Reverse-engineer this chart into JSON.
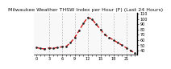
{
  "title": "Milwaukee Weather THSW Index per Hour (F) (Last 24 Hours)",
  "hours": [
    0,
    1,
    2,
    3,
    4,
    5,
    6,
    7,
    8,
    9,
    10,
    11,
    12,
    13,
    14,
    15,
    16,
    17,
    18,
    19,
    20,
    21,
    22,
    23
  ],
  "values": [
    46,
    44,
    43,
    45,
    44,
    46,
    47,
    48,
    55,
    65,
    78,
    92,
    103,
    100,
    90,
    80,
    70,
    65,
    60,
    55,
    50,
    45,
    40,
    35
  ],
  "line_color": "#cc0000",
  "marker_color": "#222222",
  "bg_color": "#ffffff",
  "plot_bg": "#f8f8f8",
  "grid_color": "#999999",
  "ylim": [
    32,
    112
  ],
  "ytick_vals": [
    40,
    50,
    60,
    70,
    80,
    90,
    100,
    110
  ],
  "ytick_labels": [
    "40",
    "50",
    "60",
    "70",
    "80",
    "90",
    "100",
    "110"
  ],
  "xtick_positions": [
    0,
    1,
    2,
    3,
    4,
    5,
    6,
    7,
    8,
    9,
    10,
    11,
    12,
    13,
    14,
    15,
    16,
    17,
    18,
    19,
    20,
    21,
    22,
    23
  ],
  "grid_x_positions": [
    3,
    6,
    9,
    12,
    15,
    18,
    21
  ],
  "title_fontsize": 4.5,
  "tick_fontsize": 3.5,
  "linewidth": 0.9,
  "markersize": 1.8
}
